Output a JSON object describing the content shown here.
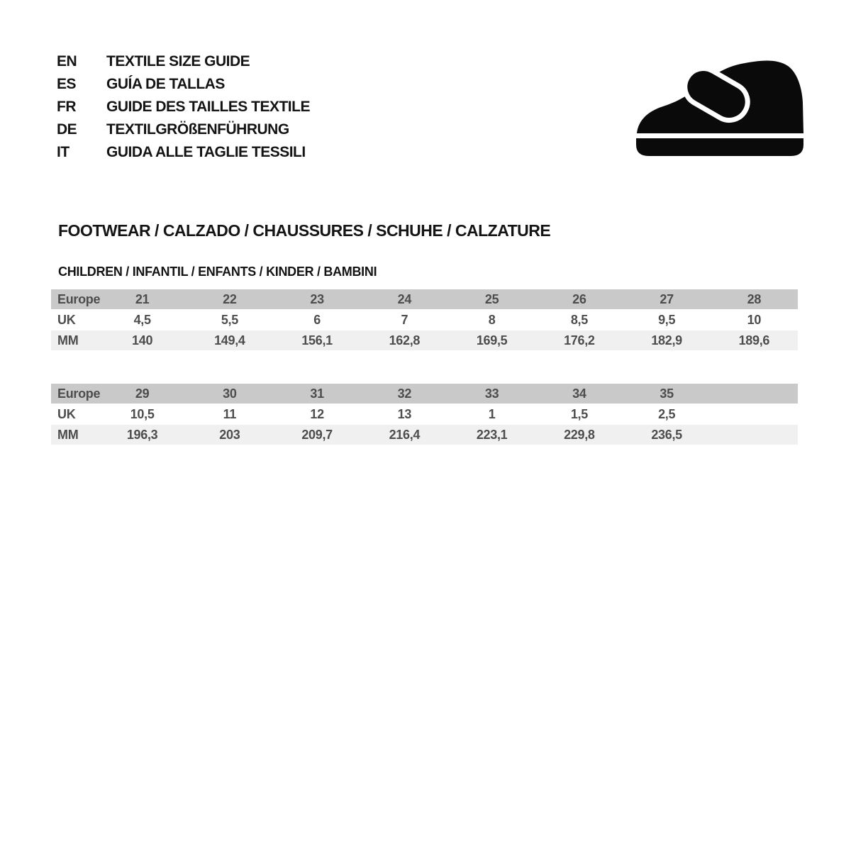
{
  "languages": [
    {
      "code": "EN",
      "label": "TEXTILE SIZE GUIDE"
    },
    {
      "code": "ES",
      "label": "GUÍA DE TALLAS"
    },
    {
      "code": "FR",
      "label": "GUIDE DES TAILLES TEXTILE"
    },
    {
      "code": "DE",
      "label": "TEXTILGRÖßENFÜHRUNG"
    },
    {
      "code": "IT",
      "label": "GUIDA ALLE TAGLIE TESSILI"
    }
  ],
  "icons": {
    "shoe": "children-shoe-icon"
  },
  "section": {
    "title": "FOOTWEAR / CALZADO / CHAUSSURES / SCHUHE / CALZATURE",
    "subtitle": "CHILDREN / INFANTIL / ENFANTS / KINDER / BAMBINI"
  },
  "colors": {
    "header_row_bg": "#c9c9c9",
    "alt_row_bg": "#f0f0f0",
    "table_text": "#4d4d4d",
    "heading_text": "#141414"
  },
  "tables": [
    {
      "rows": [
        {
          "label": "Europe",
          "values": [
            "21",
            "22",
            "23",
            "24",
            "25",
            "26",
            "27",
            "28"
          ]
        },
        {
          "label": "UK",
          "values": [
            "4,5",
            "5,5",
            "6",
            "7",
            "8",
            "8,5",
            "9,5",
            "10"
          ]
        },
        {
          "label": "MM",
          "values": [
            "140",
            "149,4",
            "156,1",
            "162,8",
            "169,5",
            "176,2",
            "182,9",
            "189,6"
          ]
        }
      ]
    },
    {
      "rows": [
        {
          "label": "Europe",
          "values": [
            "29",
            "30",
            "31",
            "32",
            "33",
            "34",
            "35",
            ""
          ]
        },
        {
          "label": "UK",
          "values": [
            "10,5",
            "11",
            "12",
            "13",
            "1",
            "1,5",
            "2,5",
            ""
          ]
        },
        {
          "label": "MM",
          "values": [
            "196,3",
            "203",
            "209,7",
            "216,4",
            "223,1",
            "229,8",
            "236,5",
            ""
          ]
        }
      ]
    }
  ]
}
